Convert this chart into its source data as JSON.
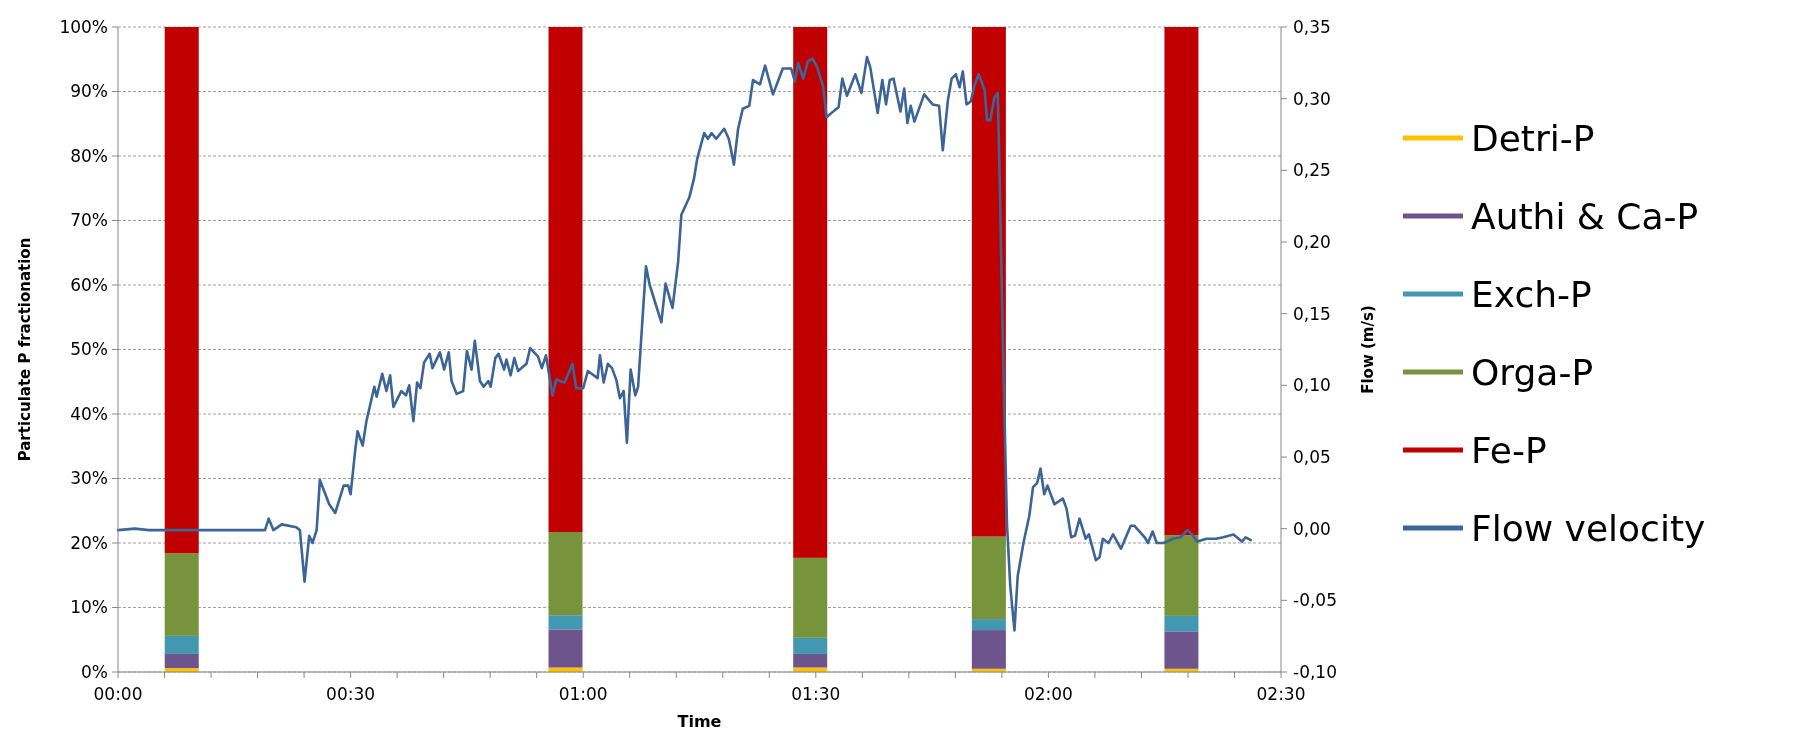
{
  "chart_data": {
    "type": "bar",
    "stacked": true,
    "xlabel": "Time",
    "ylabel": "Particulate P fractionation",
    "y2label": "Flow (m/s)",
    "x": [
      0.137,
      0.962,
      1.488,
      1.872,
      2.286
    ],
    "xlim": [
      0,
      2.5
    ],
    "xticks": [
      {
        "value": 0,
        "label": "00:00"
      },
      {
        "value": 0.1,
        "label": null
      },
      {
        "value": 0.2,
        "label": null
      },
      {
        "value": 0.3,
        "label": null
      },
      {
        "value": 0.4,
        "label": null
      },
      {
        "value": 0.5,
        "label": "00:30"
      },
      {
        "value": 0.6,
        "label": null
      },
      {
        "value": 0.7,
        "label": null
      },
      {
        "value": 0.8,
        "label": null
      },
      {
        "value": 0.9,
        "label": null
      },
      {
        "value": 1,
        "label": "01:00"
      },
      {
        "value": 1.1,
        "label": null
      },
      {
        "value": 1.2,
        "label": null
      },
      {
        "value": 1.3,
        "label": null
      },
      {
        "value": 1.4,
        "label": null
      },
      {
        "value": 1.5,
        "label": "01:30"
      },
      {
        "value": 1.6,
        "label": null
      },
      {
        "value": 1.7,
        "label": null
      },
      {
        "value": 1.8,
        "label": null
      },
      {
        "value": 1.9,
        "label": null
      },
      {
        "value": 2,
        "label": "02:00"
      },
      {
        "value": 2.1,
        "label": null
      },
      {
        "value": 2.2,
        "label": null
      },
      {
        "value": 2.3,
        "label": null
      },
      {
        "value": 2.4,
        "label": null
      },
      {
        "value": 2.5,
        "label": "02:30"
      }
    ],
    "ylim": [
      0,
      100
    ],
    "yticks": [
      {
        "value": 0,
        "label": "0%"
      },
      {
        "value": 10,
        "label": "10%"
      },
      {
        "value": 20,
        "label": "20%"
      },
      {
        "value": 30,
        "label": "30%"
      },
      {
        "value": 40,
        "label": "40%"
      },
      {
        "value": 50,
        "label": "50%"
      },
      {
        "value": 60,
        "label": "60%"
      },
      {
        "value": 70,
        "label": "70%"
      },
      {
        "value": 80,
        "label": "80%"
      },
      {
        "value": 90,
        "label": "90%"
      },
      {
        "value": 100,
        "label": "100%"
      }
    ],
    "y2lim": [
      -0.1,
      0.35
    ],
    "y2ticks": [
      {
        "value": -0.1,
        "label": "-0,10"
      },
      {
        "value": -0.05,
        "label": "-0,05"
      },
      {
        "value": 0,
        "label": "0,00"
      },
      {
        "value": 0.05,
        "label": "0,05"
      },
      {
        "value": 0.1,
        "label": "0,10"
      },
      {
        "value": 0.15,
        "label": "0,15"
      },
      {
        "value": 0.2,
        "label": "0,20"
      },
      {
        "value": 0.25,
        "label": "0,25"
      },
      {
        "value": 0.3,
        "label": "0,30"
      },
      {
        "value": 0.35,
        "label": "0,35"
      }
    ],
    "grid": "y",
    "legend": "right",
    "series": [
      {
        "name": "Detri-P",
        "color": "#ffc000",
        "values": [
          0.6,
          0.7,
          0.7,
          0.5,
          0.5
        ]
      },
      {
        "name": "Authi & Ca-P",
        "color": "#6e548d",
        "values": [
          2.2,
          5.9,
          2.1,
          6.0,
          5.8
        ]
      },
      {
        "name": "Exch-P",
        "color": "#4198b0",
        "values": [
          2.8,
          2.2,
          2.5,
          1.7,
          2.4
        ]
      },
      {
        "name": "Orga-P",
        "color": "#77933c",
        "values": [
          12.8,
          12.9,
          12.4,
          12.8,
          12.5
        ]
      },
      {
        "name": "Fe-P",
        "color": "#c00000",
        "values": [
          81.6,
          78.3,
          82.3,
          79.0,
          78.8
        ]
      },
      {
        "name": "Flow velocity",
        "type": "line",
        "axis": "y2",
        "color": "#3c6497",
        "x": [
          0,
          0.036,
          0.066,
          0.128,
          0.219,
          0.316,
          0.324,
          0.334,
          0.352,
          0.383,
          0.391,
          0.401,
          0.411,
          0.418,
          0.427,
          0.434,
          0.454,
          0.467,
          0.485,
          0.495,
          0.5,
          0.51,
          0.515,
          0.526,
          0.534,
          0.551,
          0.556,
          0.568,
          0.577,
          0.585,
          0.592,
          0.609,
          0.619,
          0.626,
          0.635,
          0.643,
          0.65,
          0.658,
          0.67,
          0.676,
          0.692,
          0.701,
          0.711,
          0.717,
          0.728,
          0.742,
          0.75,
          0.76,
          0.767,
          0.778,
          0.786,
          0.796,
          0.801,
          0.811,
          0.818,
          0.83,
          0.835,
          0.844,
          0.852,
          0.86,
          0.878,
          0.886,
          0.903,
          0.911,
          0.92,
          0.934,
          0.942,
          0.96,
          0.977,
          0.985,
          1.0,
          1.01,
          1.031,
          1.036,
          1.044,
          1.053,
          1.062,
          1.071,
          1.079,
          1.087,
          1.094,
          1.102,
          1.112,
          1.118,
          1.128,
          1.135,
          1.143,
          1.168,
          1.177,
          1.192,
          1.204,
          1.211,
          1.228,
          1.238,
          1.245,
          1.255,
          1.26,
          1.268,
          1.276,
          1.286,
          1.303,
          1.313,
          1.324,
          1.333,
          1.343,
          1.357,
          1.365,
          1.38,
          1.391,
          1.408,
          1.429,
          1.447,
          1.455,
          1.462,
          1.473,
          1.483,
          1.493,
          1.503,
          1.516,
          1.523,
          1.541,
          1.549,
          1.557,
          1.567,
          1.585,
          1.598,
          1.61,
          1.617,
          1.633,
          1.643,
          1.651,
          1.659,
          1.667,
          1.682,
          1.69,
          1.697,
          1.704,
          1.712,
          1.733,
          1.751,
          1.765,
          1.773,
          1.784,
          1.792,
          1.801,
          1.809,
          1.816,
          1.824,
          1.833,
          1.841,
          1.85,
          1.863,
          1.868,
          1.875,
          1.884,
          1.891,
          1.894,
          1.898,
          1.904,
          1.911,
          1.918,
          1.927,
          1.934,
          1.947,
          1.959,
          1.967,
          1.976,
          1.983,
          1.991,
          1.998,
          2.013,
          2.031,
          2.039,
          2.049,
          2.057,
          2.067,
          2.08,
          2.087,
          2.102,
          2.11,
          2.117,
          2.129,
          2.139,
          2.156,
          2.177,
          2.185,
          2.207,
          2.214,
          2.224,
          2.233,
          2.248,
          2.268,
          2.284,
          2.299,
          2.309,
          2.32,
          2.34,
          2.36,
          2.376,
          2.398,
          2.416,
          2.424,
          2.435
        ],
        "values": [
          -0.001,
          0.0,
          -0.001,
          -0.001,
          -0.001,
          -0.001,
          0.007,
          -0.001,
          0.003,
          0.001,
          -0.001,
          -0.037,
          -0.005,
          -0.01,
          -0.001,
          0.034,
          0.017,
          0.011,
          0.03,
          0.03,
          0.024,
          0.055,
          0.068,
          0.058,
          0.075,
          0.099,
          0.092,
          0.108,
          0.096,
          0.107,
          0.085,
          0.096,
          0.093,
          0.1,
          0.075,
          0.102,
          0.098,
          0.116,
          0.122,
          0.112,
          0.123,
          0.111,
          0.123,
          0.103,
          0.094,
          0.096,
          0.124,
          0.111,
          0.131,
          0.103,
          0.099,
          0.103,
          0.099,
          0.119,
          0.122,
          0.111,
          0.118,
          0.107,
          0.119,
          0.11,
          0.115,
          0.126,
          0.12,
          0.112,
          0.121,
          0.093,
          0.104,
          0.102,
          0.115,
          0.098,
          0.098,
          0.11,
          0.105,
          0.121,
          0.102,
          0.115,
          0.112,
          0.104,
          0.091,
          0.096,
          0.06,
          0.111,
          0.093,
          0.099,
          0.149,
          0.183,
          0.17,
          0.144,
          0.171,
          0.154,
          0.186,
          0.219,
          0.231,
          0.244,
          0.258,
          0.27,
          0.276,
          0.272,
          0.276,
          0.272,
          0.279,
          0.272,
          0.254,
          0.279,
          0.293,
          0.295,
          0.313,
          0.31,
          0.323,
          0.303,
          0.321,
          0.321,
          0.312,
          0.325,
          0.314,
          0.326,
          0.328,
          0.322,
          0.308,
          0.287,
          0.292,
          0.294,
          0.314,
          0.302,
          0.317,
          0.304,
          0.329,
          0.322,
          0.29,
          0.313,
          0.296,
          0.313,
          0.314,
          0.291,
          0.307,
          0.283,
          0.295,
          0.284,
          0.303,
          0.296,
          0.295,
          0.264,
          0.299,
          0.314,
          0.317,
          0.308,
          0.319,
          0.296,
          0.298,
          0.309,
          0.317,
          0.306,
          0.285,
          0.285,
          0.301,
          0.304,
          0.265,
          0.199,
          0.101,
          0.003,
          -0.04,
          -0.071,
          -0.033,
          -0.009,
          0.009,
          0.029,
          0.032,
          0.042,
          0.024,
          0.03,
          0.017,
          0.021,
          0.014,
          -0.006,
          -0.005,
          0.007,
          -0.007,
          -0.004,
          -0.022,
          -0.02,
          -0.007,
          -0.01,
          -0.004,
          -0.014,
          0.002,
          0.002,
          -0.006,
          -0.01,
          -0.002,
          -0.01,
          -0.01,
          -0.007,
          -0.006,
          -0.001,
          -0.004,
          -0.009,
          -0.007,
          -0.007,
          -0.006,
          -0.004,
          -0.009,
          -0.006,
          -0.008
        ]
      }
    ]
  }
}
